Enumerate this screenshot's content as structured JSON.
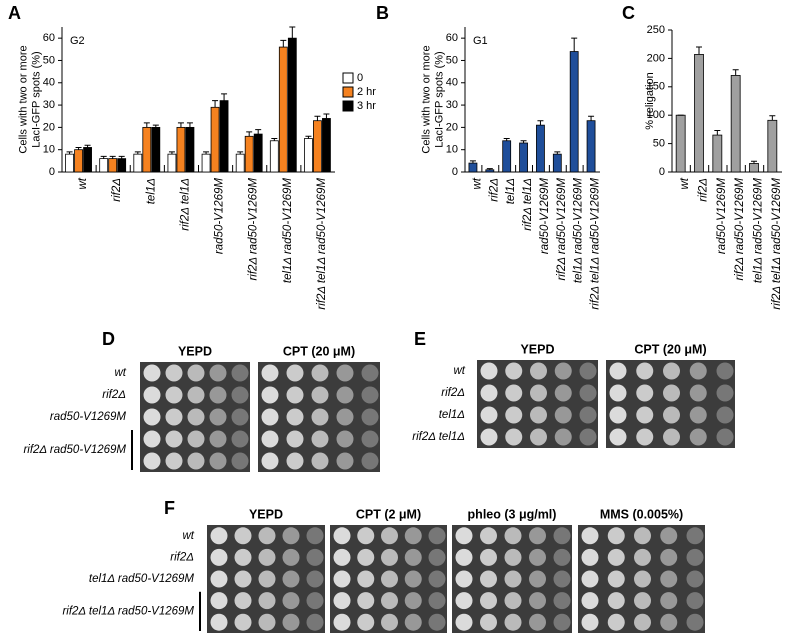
{
  "chart_data": [
    {
      "type": "bar",
      "panel": "A",
      "annotation": "G2",
      "ylabel": [
        "Cells with two or more",
        "LacI-GFP spots (%)"
      ],
      "categories": [
        "wt",
        "rif2Δ",
        "tel1Δ",
        "rif2Δ tel1Δ",
        "rad50-V1269M",
        "rif2Δ rad50-V1269M",
        "tel1Δ rad50-V1269M",
        "rif2Δ tel1Δ rad50-V1269M"
      ],
      "series": [
        {
          "name": "0",
          "color": "#ffffff",
          "values": [
            8,
            6,
            8,
            8,
            8,
            8,
            14,
            15
          ],
          "errors": [
            1,
            1,
            1,
            1,
            1,
            1,
            1,
            1
          ]
        },
        {
          "name": "2 hr",
          "color": "#f58220",
          "values": [
            10,
            6,
            20,
            20,
            29,
            16,
            56,
            23
          ],
          "errors": [
            1,
            1,
            2,
            2,
            3,
            2,
            3,
            2
          ]
        },
        {
          "name": "3 hr",
          "color": "#000000",
          "values": [
            11,
            6,
            20,
            20,
            32,
            17,
            60,
            24
          ],
          "errors": [
            1,
            1,
            1,
            2,
            3,
            2,
            5,
            2
          ]
        }
      ],
      "ylim": [
        0,
        65
      ],
      "yticks": [
        0,
        10,
        20,
        30,
        40,
        50,
        60
      ],
      "legend": "right"
    },
    {
      "type": "bar",
      "panel": "B",
      "annotation": "G1",
      "ylabel": [
        "Cells with two or more",
        "LacI-GFP spots (%)"
      ],
      "categories": [
        "wt",
        "rif2Δ",
        "tel1Δ",
        "rif2Δ tel1Δ",
        "rad50-V1269M",
        "rif2Δ rad50-V1269M",
        "tel1Δ rad50-V1269M",
        "rif2Δ tel1Δ rad50-V1269M"
      ],
      "series": [
        {
          "color": "#1f4e9a",
          "values": [
            4,
            1,
            14,
            13,
            21,
            8,
            54,
            23
          ],
          "errors": [
            1,
            0.5,
            1,
            1,
            2,
            1,
            6,
            2
          ]
        }
      ],
      "ylim": [
        0,
        65
      ],
      "yticks": [
        0,
        10,
        20,
        30,
        40,
        50,
        60
      ]
    },
    {
      "type": "bar",
      "panel": "C",
      "ylabel": [
        "% religation"
      ],
      "categories": [
        "wt",
        "rif2Δ",
        "rad50-V1269M",
        "rif2Δ rad50-V1269M",
        "tel1Δ rad50-V1269M",
        "rif2Δ tel1Δ rad50-V1269M"
      ],
      "series": [
        {
          "color": "#a0a0a0",
          "values": [
            100,
            207,
            65,
            170,
            15,
            91
          ],
          "errors": [
            0,
            13,
            8,
            10,
            4,
            8
          ]
        }
      ],
      "ylim": [
        0,
        250
      ],
      "yticks": [
        0,
        50,
        100,
        150,
        200,
        250
      ]
    }
  ],
  "plates": [
    {
      "panel": "D",
      "conditions": [
        "YEPD",
        "CPT (20 μM)"
      ],
      "strains": [
        "wt",
        "rif2Δ",
        "rad50-V1269M",
        "rif2Δ rad50-V1269M"
      ]
    },
    {
      "panel": "E",
      "conditions": [
        "YEPD",
        "CPT (20 μM)"
      ],
      "strains": [
        "wt",
        "rif2Δ",
        "tel1Δ",
        "rif2Δ tel1Δ"
      ]
    },
    {
      "panel": "F",
      "conditions": [
        "YEPD",
        "CPT (2 μM)",
        "phleo (3 μg/ml)",
        "MMS (0.005%)"
      ],
      "strains": [
        "wt",
        "rif2Δ",
        "tel1Δ rad50-V1269M",
        "rif2Δ tel1Δ rad50-V1269M"
      ]
    }
  ]
}
